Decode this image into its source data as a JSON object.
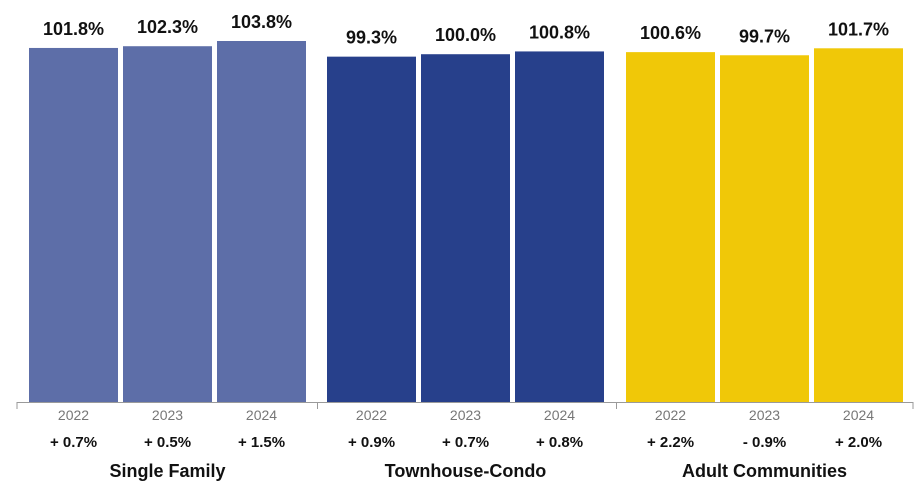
{
  "chart_data": {
    "type": "bar",
    "title": "",
    "xlabel": "",
    "ylabel": "",
    "ylim": [
      0,
      110
    ],
    "grid": false,
    "groups": [
      {
        "name": "Single Family",
        "color": "#5d6ea8",
        "bars": [
          {
            "year": "2022",
            "value": 101.8,
            "value_label": "101.8%",
            "change": "+ 0.7%"
          },
          {
            "year": "2023",
            "value": 102.3,
            "value_label": "102.3%",
            "change": "+ 0.5%"
          },
          {
            "year": "2024",
            "value": 103.8,
            "value_label": "103.8%",
            "change": "+ 1.5%"
          }
        ]
      },
      {
        "name": "Townhouse-Condo",
        "color": "#27408b",
        "bars": [
          {
            "year": "2022",
            "value": 99.3,
            "value_label": "99.3%",
            "change": "+ 0.9%"
          },
          {
            "year": "2023",
            "value": 100.0,
            "value_label": "100.0%",
            "change": "+ 0.7%"
          },
          {
            "year": "2024",
            "value": 100.8,
            "value_label": "100.8%",
            "change": "+ 0.8%"
          }
        ]
      },
      {
        "name": "Adult Communities",
        "color": "#f0c808",
        "bars": [
          {
            "year": "2022",
            "value": 100.6,
            "value_label": "100.6%",
            "change": "+ 2.2%"
          },
          {
            "year": "2023",
            "value": 99.7,
            "value_label": "99.7%",
            "change": "- 0.9%"
          },
          {
            "year": "2024",
            "value": 101.7,
            "value_label": "101.7%",
            "change": "+ 2.0%"
          }
        ]
      }
    ]
  }
}
